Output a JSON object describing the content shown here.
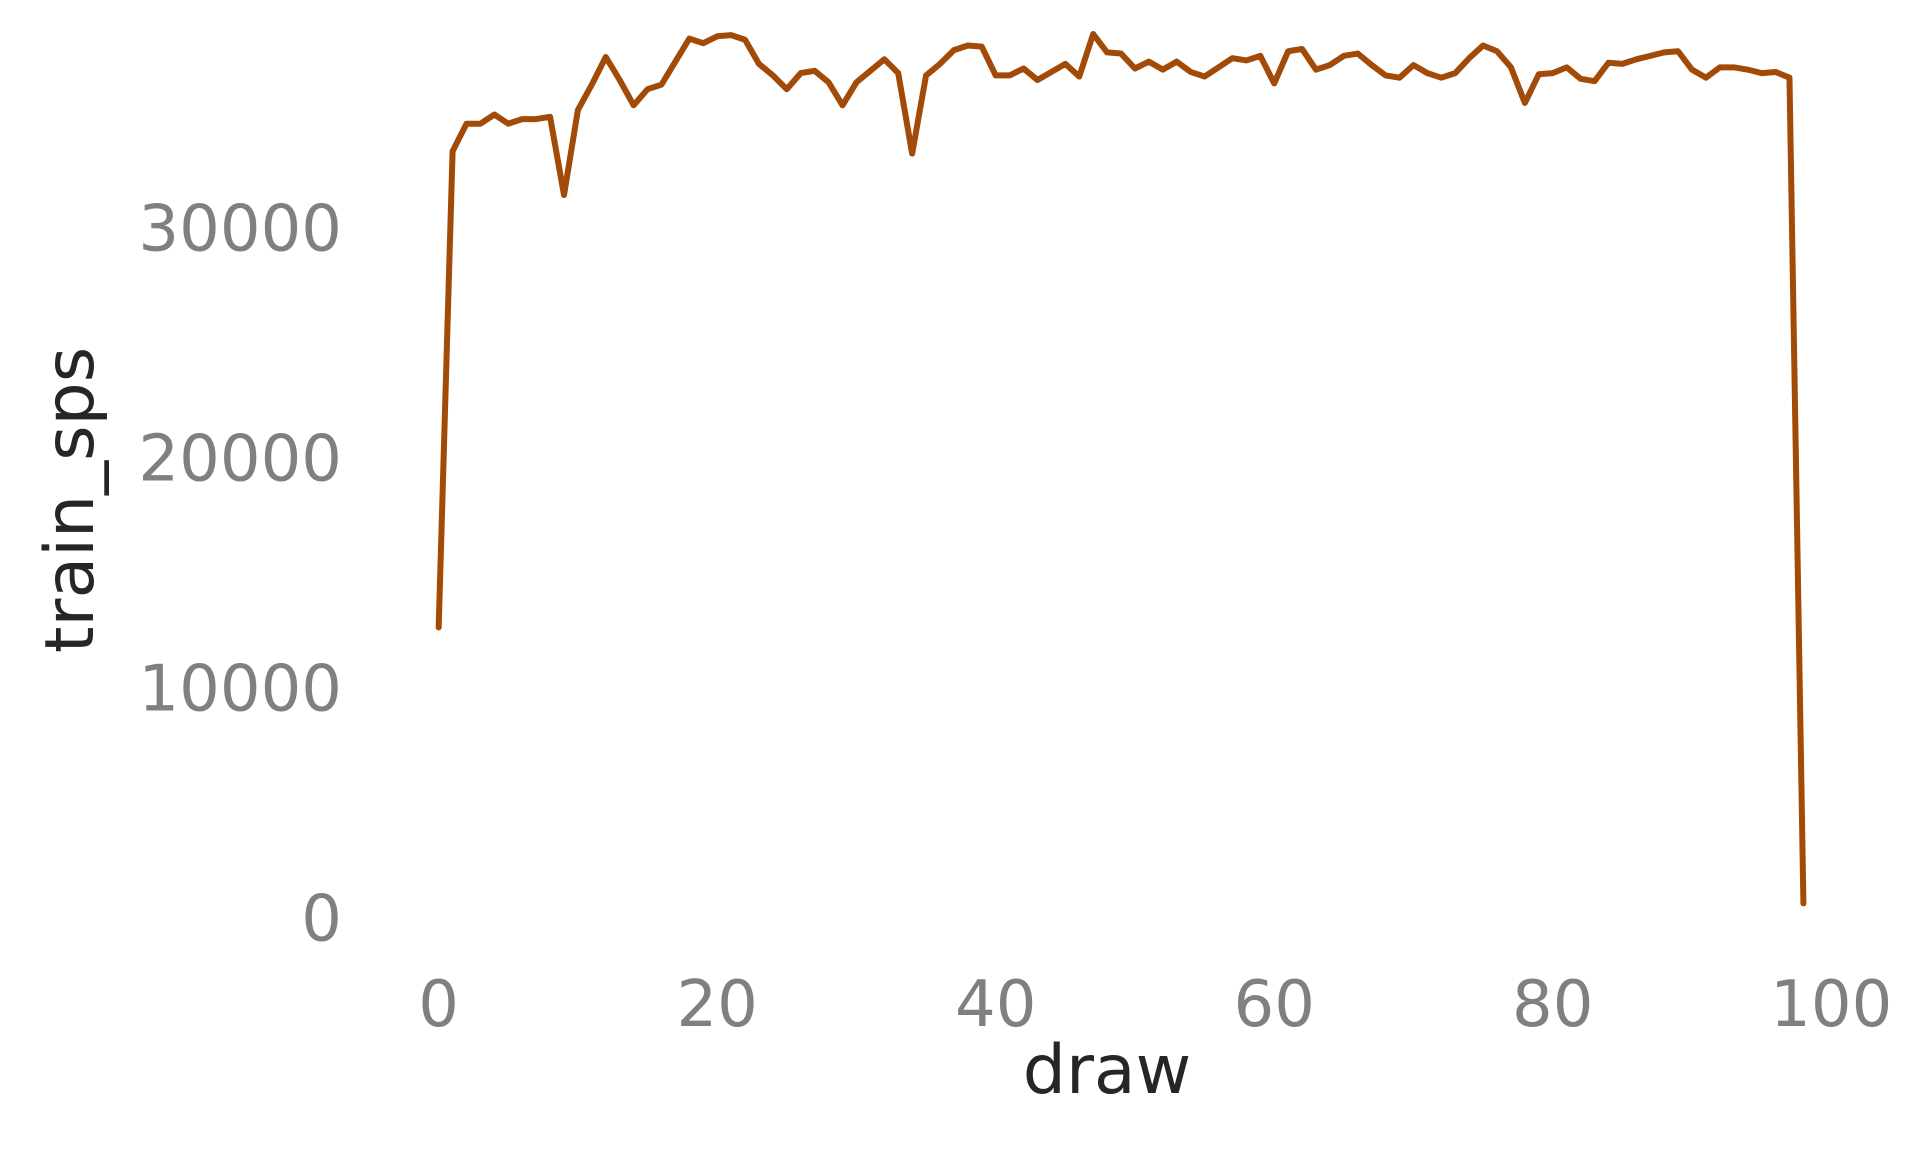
{
  "chart_data": {
    "type": "line",
    "title": "",
    "xlabel": "draw",
    "ylabel": "train_sps",
    "xlim": [
      -4.5,
      103.5
    ],
    "ylim": [
      -1500,
      38500
    ],
    "xticks": [
      0,
      20,
      40,
      60,
      80,
      100
    ],
    "yticks": [
      0,
      10000,
      20000,
      30000
    ],
    "xtick_labels": [
      "0",
      "20",
      "40",
      "60",
      "80",
      "100"
    ],
    "ytick_labels": [
      "0",
      "10000",
      "20000",
      "30000"
    ],
    "grid": false,
    "legend": "none",
    "colors": {
      "line": "#a24a08",
      "tick": "#808080",
      "label": "#262626"
    },
    "series": [
      {
        "x": [
          0,
          1,
          2,
          3,
          4,
          5,
          6,
          7,
          8,
          9,
          10,
          11,
          12,
          13,
          14,
          15,
          16,
          17,
          18,
          19,
          20,
          21,
          22,
          23,
          24,
          25,
          26,
          27,
          28,
          29,
          30,
          31,
          32,
          33,
          34,
          35,
          36,
          37,
          38,
          39,
          40,
          41,
          42,
          43,
          44,
          45,
          46,
          47,
          48,
          49,
          50,
          51,
          52,
          53,
          54,
          55,
          56,
          57,
          58,
          59,
          60,
          61,
          62,
          63,
          64,
          65,
          66,
          67,
          68,
          69,
          70,
          71,
          72,
          73,
          74,
          75,
          76,
          77,
          78,
          79,
          80,
          81,
          82,
          83,
          84,
          85,
          86,
          87,
          88,
          89,
          90,
          91,
          92,
          93,
          94,
          95,
          96,
          97,
          98
        ],
        "y": [
          12700,
          33400,
          34600,
          34600,
          35000,
          34600,
          34800,
          34800,
          34900,
          31500,
          35200,
          36300,
          37500,
          36500,
          35400,
          36100,
          36300,
          37300,
          38300,
          38100,
          38400,
          38450,
          38250,
          37200,
          36700,
          36100,
          36800,
          36900,
          36400,
          35400,
          36400,
          36900,
          37400,
          36800,
          33300,
          36700,
          37200,
          37800,
          38000,
          37950,
          36700,
          36700,
          37000,
          36500,
          36850,
          37200,
          36650,
          38500,
          37700,
          37650,
          37000,
          37300,
          36950,
          37300,
          36850,
          36650,
          37050,
          37450,
          37350,
          37550,
          36350,
          37750,
          37850,
          36950,
          37150,
          37550,
          37650,
          37150,
          36700,
          36600,
          37150,
          36800,
          36600,
          36800,
          37450,
          38000,
          37750,
          37050,
          35500,
          36750,
          36800,
          37050,
          36550,
          36450,
          37250,
          37200,
          37400,
          37550,
          37700,
          37750,
          36950,
          36600,
          37050,
          37050,
          36950,
          36800,
          36850,
          36600,
          700
        ]
      }
    ]
  }
}
